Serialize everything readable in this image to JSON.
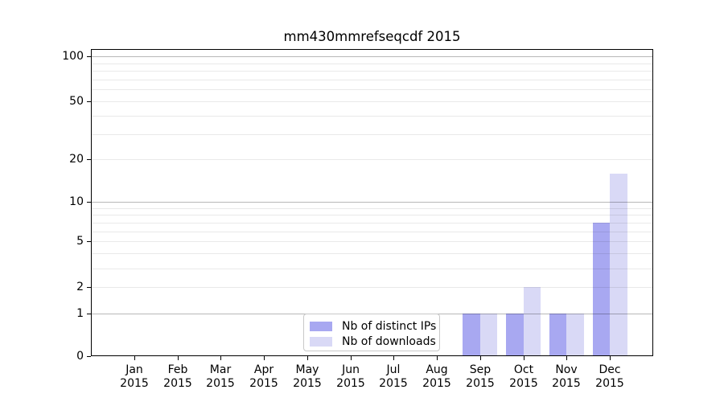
{
  "chart_data": {
    "type": "bar",
    "title": "mm430mmrefseqcdf 2015",
    "categories": [
      {
        "month": "Jan",
        "year": "2015"
      },
      {
        "month": "Feb",
        "year": "2015"
      },
      {
        "month": "Mar",
        "year": "2015"
      },
      {
        "month": "Apr",
        "year": "2015"
      },
      {
        "month": "May",
        "year": "2015"
      },
      {
        "month": "Jun",
        "year": "2015"
      },
      {
        "month": "Jul",
        "year": "2015"
      },
      {
        "month": "Aug",
        "year": "2015"
      },
      {
        "month": "Sep",
        "year": "2015"
      },
      {
        "month": "Oct",
        "year": "2015"
      },
      {
        "month": "Nov",
        "year": "2015"
      },
      {
        "month": "Dec",
        "year": "2015"
      }
    ],
    "series": [
      {
        "name": "Nb of distinct IPs",
        "color": "#a8a8f1",
        "values": [
          0,
          0,
          0,
          0,
          0,
          0,
          0,
          0,
          1,
          1,
          1,
          7
        ]
      },
      {
        "name": "Nb of downloads",
        "color": "#d9d9f6",
        "values": [
          0,
          0,
          0,
          0,
          0,
          0,
          0,
          0,
          1,
          2,
          1,
          16
        ]
      }
    ],
    "y_axis": {
      "scale": "log1p",
      "ticks": [
        0,
        1,
        2,
        5,
        10,
        20,
        50,
        100
      ],
      "major_gridlines": [
        1,
        10,
        100
      ],
      "minor_gridlines": [
        2,
        3,
        4,
        5,
        6,
        7,
        8,
        9,
        20,
        30,
        40,
        50,
        60,
        70,
        80,
        90
      ],
      "ylim": [
        0,
        112
      ]
    },
    "xlabel": "",
    "ylabel": "",
    "grid": "horizontal",
    "legend": {
      "location": "inside-bottom-left-of-center"
    }
  }
}
